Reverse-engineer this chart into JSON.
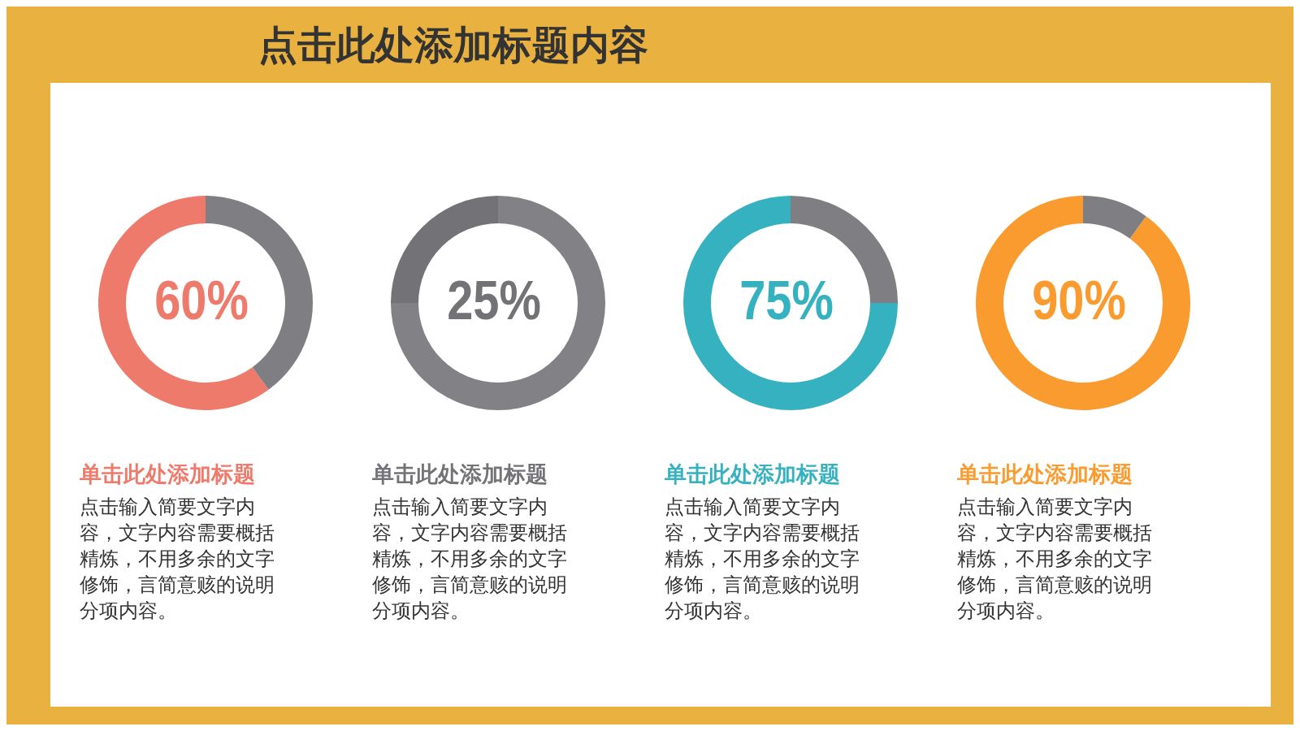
{
  "chart_data": [
    {
      "type": "donut",
      "title": "点击此处添加标题内容",
      "categories": [
        null,
        null
      ],
      "values": [
        60,
        40
      ],
      "colors": [
        "#ee7a6b",
        "#7f7f83"
      ],
      "value_labels": [
        "60%",
        null
      ],
      "annotations": [
        "单击此处添加标题",
        "点击输入简要文字内容，文字内容需要概括精炼，不用多余的文字修饰，言简意赅的说明分项内容。"
      ]
    },
    {
      "type": "donut",
      "categories": [
        null,
        null
      ],
      "values": [
        25,
        75
      ],
      "colors": [
        "#737276",
        "#828286"
      ],
      "value_labels": [
        "25%",
        null
      ],
      "annotations": [
        "单击此处添加标题",
        "点击输入简要文字内容，文字内容需要概括精炼，不用多余的文字修饰，言简意赅的说明分项内容。"
      ]
    },
    {
      "type": "donut",
      "categories": [
        null,
        null
      ],
      "values": [
        75,
        25
      ],
      "colors": [
        "#36b1c0",
        "#7f7f83"
      ],
      "value_labels": [
        "75%",
        null
      ],
      "annotations": [
        "单击此处添加标题",
        "点击输入简要文字内容，文字内容需要概括精炼，不用多余的文字修饰，言简意赅的说明分项内容。"
      ]
    },
    {
      "type": "donut",
      "categories": [
        null,
        null
      ],
      "values": [
        90,
        10
      ],
      "colors": [
        "#f99b2f",
        "#7f7f83"
      ],
      "value_labels": [
        "90%",
        null
      ],
      "annotations": [
        "单击此处添加标题",
        "点击输入简要文字内容，文字内容需要概括精炼，不用多余的文字修饰，言简意赅的说明分项内容。"
      ]
    }
  ]
}
